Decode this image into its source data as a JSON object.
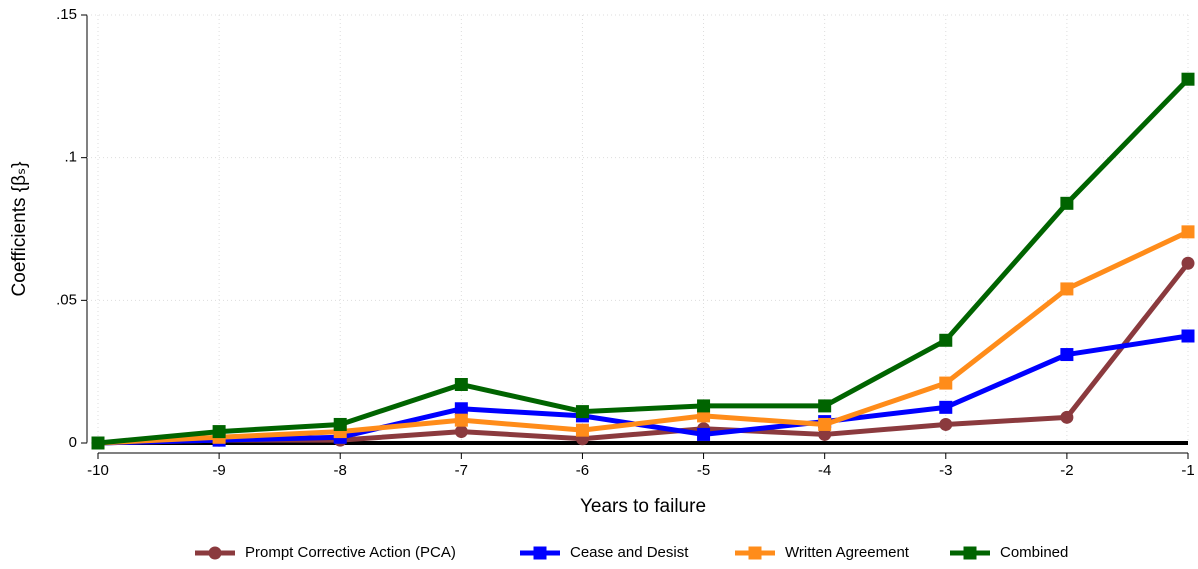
{
  "chart_data": {
    "type": "line",
    "x_label": "Years to failure",
    "y_label": "Coefficients {βₛ}",
    "x": [
      -10,
      -9,
      -8,
      -7,
      -6,
      -5,
      -4,
      -3,
      -2,
      -1
    ],
    "xlim": [
      -10,
      -1
    ],
    "xticks": [
      -10,
      -9,
      -8,
      -7,
      -6,
      -5,
      -4,
      -3,
      -2,
      -1
    ],
    "ylim": [
      0,
      0.15
    ],
    "yticks": [
      0,
      {
        "value": 0.05,
        "label": ".05"
      },
      {
        "value": 0.1,
        "label": ".1"
      },
      {
        "value": 0.15,
        "label": ".15"
      }
    ],
    "grid": true,
    "zero_line": true,
    "legend": "bottom",
    "series": [
      {
        "name": "Prompt Corrective Action (PCA)",
        "color": "#8b3a3e",
        "marker": "circle",
        "values": [
          0,
          0.001,
          0.001,
          0.004,
          0.0015,
          0.005,
          0.003,
          0.0065,
          0.009,
          0.063
        ]
      },
      {
        "name": "Cease and Desist",
        "color": "#0000ff",
        "marker": "square",
        "values": [
          0,
          0.001,
          0.002,
          0.012,
          0.0095,
          0.003,
          0.0075,
          0.0125,
          0.031,
          0.0375
        ]
      },
      {
        "name": "Written Agreement",
        "color": "#ff8c1a",
        "marker": "square",
        "values": [
          0,
          0.002,
          0.004,
          0.008,
          0.0045,
          0.0095,
          0.0065,
          0.021,
          0.054,
          0.074
        ]
      },
      {
        "name": "Combined",
        "color": "#006400",
        "marker": "square",
        "values": [
          0,
          0.004,
          0.0065,
          0.0205,
          0.011,
          0.013,
          0.013,
          0.036,
          0.084,
          0.1275
        ]
      }
    ]
  }
}
